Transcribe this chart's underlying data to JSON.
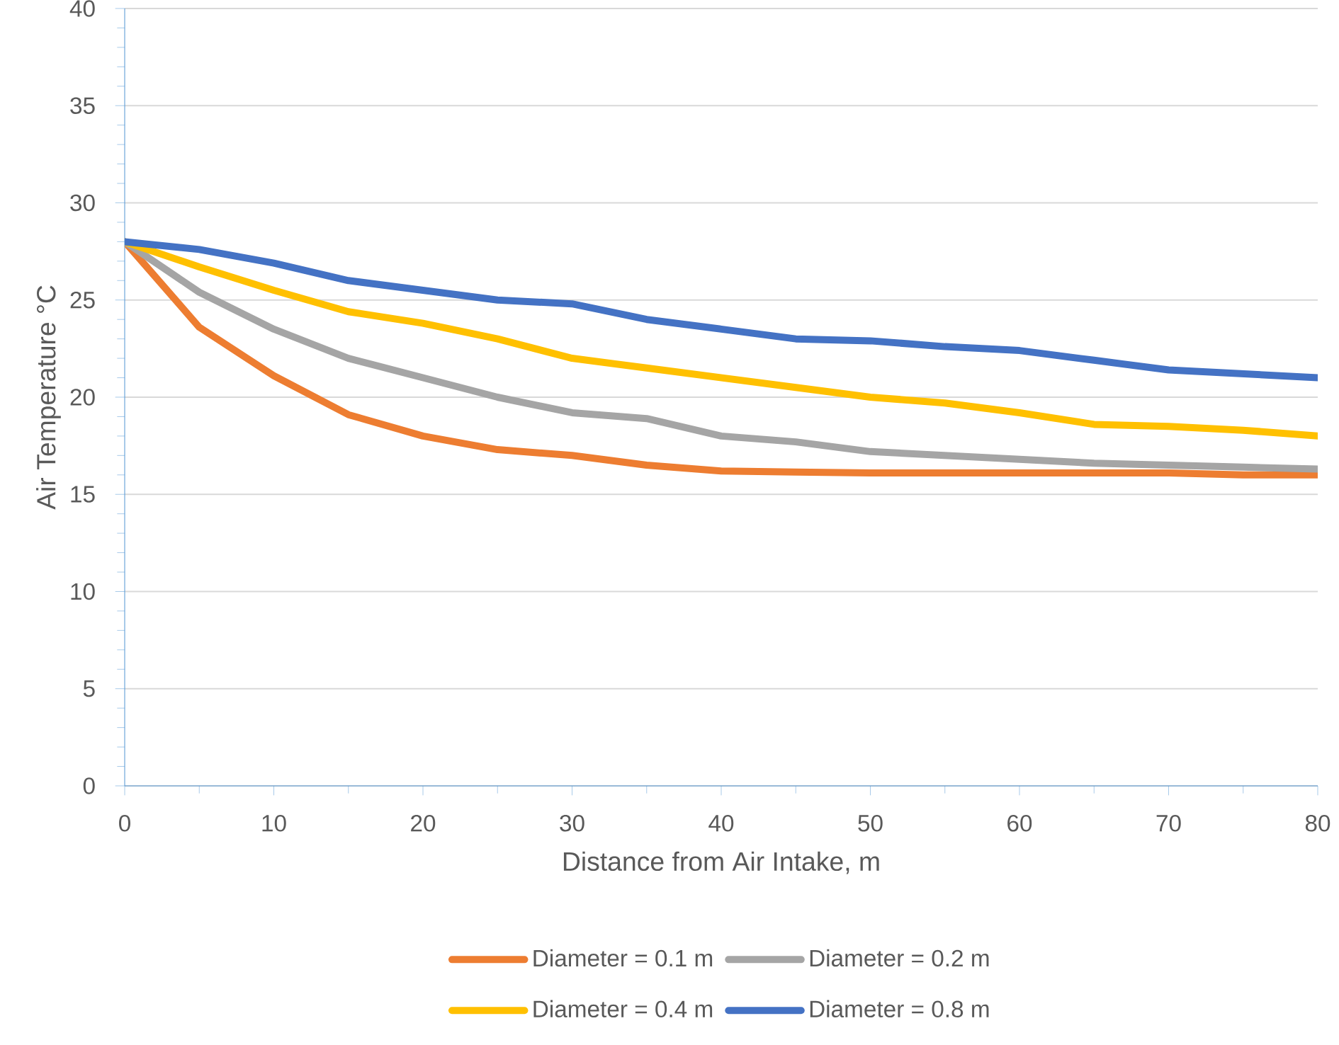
{
  "chart_data": {
    "type": "line",
    "xlabel": "Distance from Air Intake, m",
    "ylabel": "Air Temperature °C",
    "x": [
      0,
      5,
      10,
      15,
      20,
      25,
      30,
      35,
      40,
      45,
      50,
      55,
      60,
      65,
      70,
      75,
      80
    ],
    "series": [
      {
        "name": "Diameter = 0.1 m",
        "color": "#ed7d31",
        "values": [
          28,
          23.6,
          21.1,
          19.1,
          18.0,
          17.3,
          17.0,
          16.5,
          16.2,
          16.15,
          16.1,
          16.1,
          16.1,
          16.1,
          16.1,
          16.0,
          16.0
        ]
      },
      {
        "name": "Diameter = 0.2 m",
        "color": "#a5a5a5",
        "values": [
          28,
          25.4,
          23.5,
          22.0,
          21.0,
          20.0,
          19.2,
          18.9,
          18.0,
          17.7,
          17.2,
          17.0,
          16.8,
          16.6,
          16.5,
          16.4,
          16.3
        ]
      },
      {
        "name": "Diameter = 0.4 m",
        "color": "#ffc000",
        "values": [
          28,
          26.7,
          25.5,
          24.4,
          23.8,
          23.0,
          22.0,
          21.5,
          21.0,
          20.5,
          20.0,
          19.7,
          19.2,
          18.6,
          18.5,
          18.3,
          18.0
        ]
      },
      {
        "name": "Diameter = 0.8 m",
        "color": "#4472c4",
        "values": [
          28,
          27.6,
          26.9,
          26.0,
          25.5,
          25.0,
          24.8,
          24.0,
          23.5,
          23.0,
          22.9,
          22.6,
          22.4,
          21.9,
          21.4,
          21.2,
          21.0
        ]
      }
    ],
    "xlim": [
      0,
      80
    ],
    "ylim": [
      0,
      40
    ],
    "xticks": [
      0,
      10,
      20,
      30,
      40,
      50,
      60,
      70,
      80
    ],
    "yticks": [
      0,
      5,
      10,
      15,
      20,
      25,
      30,
      35,
      40
    ],
    "grid": "y",
    "legend": "bottom",
    "marker": "none",
    "line_style": "solid"
  }
}
